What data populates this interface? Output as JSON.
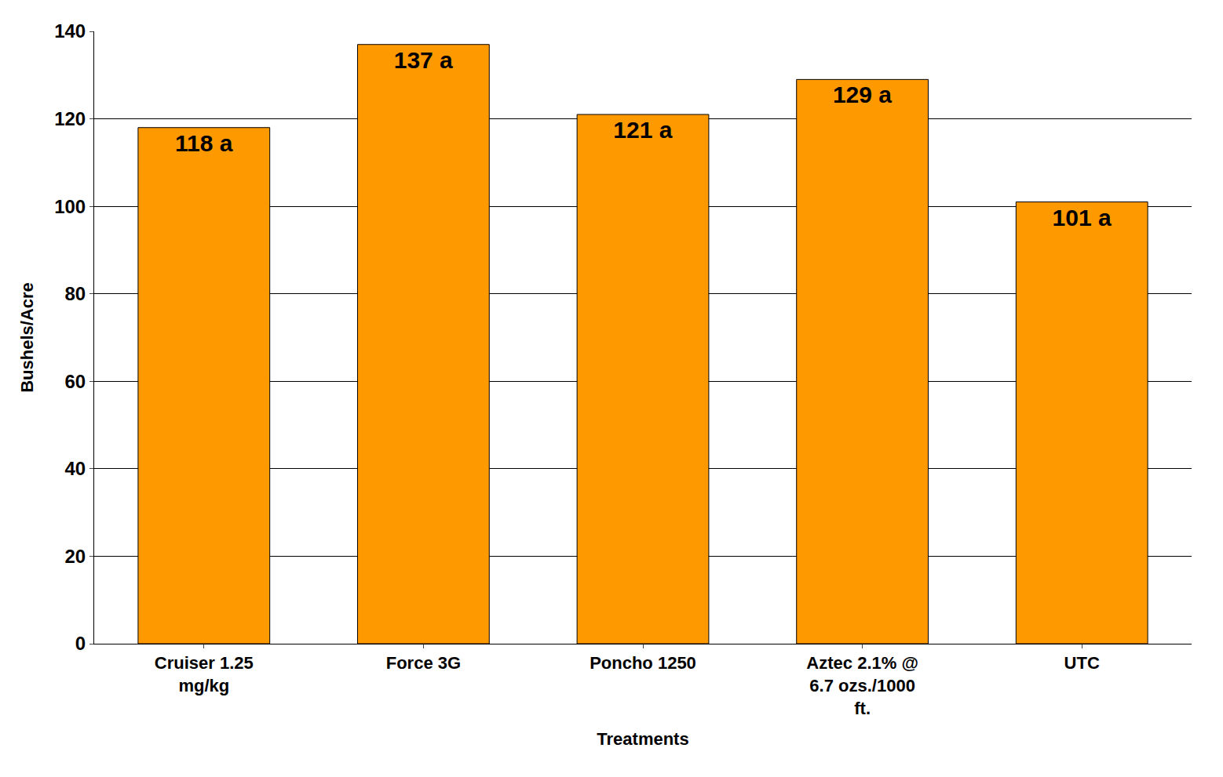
{
  "chart_data": {
    "type": "bar",
    "x_label": "Treatments",
    "y_label": "Bushels/Acre",
    "categories": [
      "Cruiser 1.25 mg/kg",
      "Force 3G",
      "Poncho 1250",
      "Aztec 2.1% @ 6.7 ozs./1000 ft.",
      "UTC"
    ],
    "values": [
      118,
      137,
      121,
      129,
      101
    ],
    "value_labels": [
      "118 a",
      "137 a",
      "121 a",
      "129 a",
      "101 a"
    ],
    "data_labels": true,
    "color": "#ff9900",
    "ylim": [
      0,
      140
    ],
    "yticks": [
      0,
      20,
      40,
      60,
      80,
      100,
      120,
      140
    ],
    "grid": true
  }
}
